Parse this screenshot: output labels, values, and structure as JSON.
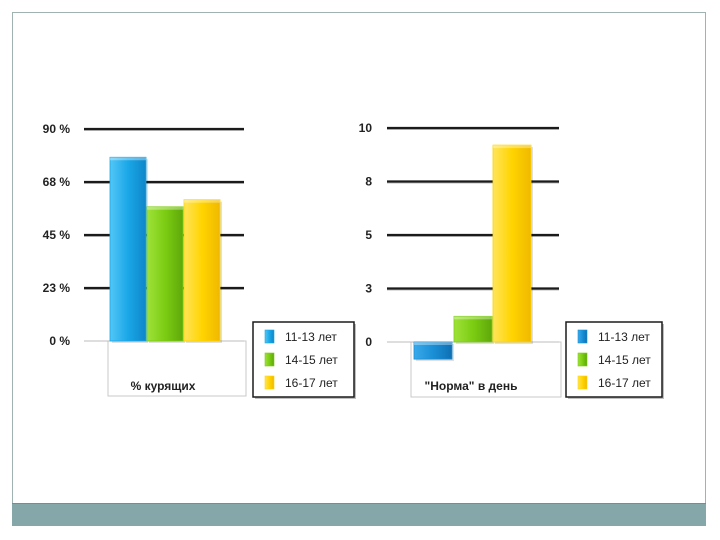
{
  "chart_data": [
    {
      "type": "bar",
      "categories": [
        "% курящих"
      ],
      "series": [
        {
          "name": "11-13 лет",
          "values": [
            78
          ],
          "color": "#1aa7e8"
        },
        {
          "name": "14-15 лет",
          "values": [
            57
          ],
          "color": "#7ccc12"
        },
        {
          "name": "16-17 лет",
          "values": [
            60
          ],
          "color": "#ffd400"
        }
      ],
      "ylim": [
        0,
        90
      ],
      "yticks": [
        0,
        22.5,
        45,
        67.5,
        90
      ],
      "ytick_labels": [
        "0 %",
        "23 %",
        "45 %",
        "68 %",
        "90 %"
      ],
      "grid": true,
      "legend": "right"
    },
    {
      "type": "bar",
      "categories": [
        "\"Норма\" в день"
      ],
      "series": [
        {
          "name": "11-13 лет",
          "values": [
            -0.8
          ],
          "color": "#1a8fd6"
        },
        {
          "name": "14-15 лет",
          "values": [
            1.2
          ],
          "color": "#7ccc12"
        },
        {
          "name": "16-17 лет",
          "values": [
            9.2
          ],
          "color": "#ffd400"
        }
      ],
      "ylim": [
        0,
        10
      ],
      "yticks": [
        0,
        2.5,
        5,
        7.5,
        10
      ],
      "ytick_labels": [
        "0",
        "3",
        "5",
        "8",
        "10"
      ],
      "grid": true,
      "legend": "right"
    }
  ]
}
